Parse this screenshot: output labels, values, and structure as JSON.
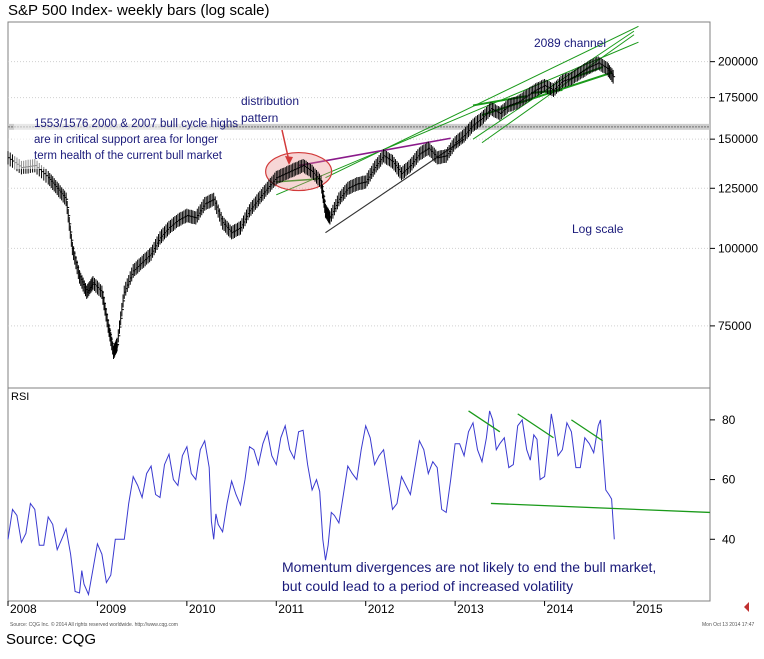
{
  "header": {
    "title": "S&P 500 Index- weekly bars (log scale)"
  },
  "footer": {
    "source": "Source: CQG",
    "fineprint_left": "Source: CQG Inc. © 2014 All rights reserved worldwide. http://www.cqg.com",
    "fineprint_right": "Mon Oct 13 2014 17:47"
  },
  "colors": {
    "price": "#000000",
    "rsi": "#3a3ad0",
    "trend_green": "#1a9a1a",
    "trend_purple": "#8a1a8a",
    "annotation": "#1a1a7a",
    "ellipse": "#d23a3a"
  },
  "chart_data": [
    {
      "type": "line",
      "name": "price-panel",
      "yscale": "log",
      "ylim": [
        60000,
        230000
      ],
      "xlim": [
        2008.0,
        2015.85
      ],
      "xlabel": "",
      "ylabel": "",
      "y_ticks": [
        200000,
        175000,
        150000,
        125000,
        100000,
        75000
      ],
      "y_tick_labels": [
        "200000",
        "175000",
        "150000",
        "125000",
        100000,
        "75000"
      ],
      "support_band": 157000,
      "series": [
        {
          "x": [
            2008.0,
            2008.15,
            2008.3,
            2008.45,
            2008.55,
            2008.65,
            2008.72,
            2008.8,
            2008.88,
            2008.95,
            2009.05,
            2009.12,
            2009.18,
            2009.22,
            2009.3,
            2009.4,
            2009.5,
            2009.6,
            2009.7,
            2009.8,
            2009.9,
            2010.0,
            2010.1,
            2010.2,
            2010.3,
            2010.4,
            2010.5,
            2010.6,
            2010.7,
            2010.8,
            2010.9,
            2011.0,
            2011.1,
            2011.2,
            2011.3,
            2011.4,
            2011.5,
            2011.55,
            2011.6,
            2011.7,
            2011.8,
            2011.9,
            2012.0,
            2012.1,
            2012.2,
            2012.3,
            2012.4,
            2012.5,
            2012.6,
            2012.7,
            2012.8,
            2012.9,
            2013.0,
            2013.1,
            2013.2,
            2013.3,
            2013.4,
            2013.5,
            2013.6,
            2013.7,
            2013.8,
            2013.9,
            2014.0,
            2014.1,
            2014.2,
            2014.3,
            2014.4,
            2014.5,
            2014.6,
            2014.7,
            2014.78
          ],
          "values": [
            140000,
            135000,
            136000,
            130000,
            125000,
            120000,
            100000,
            90000,
            85000,
            88000,
            85000,
            75000,
            68000,
            70000,
            85000,
            92000,
            95000,
            98000,
            104000,
            108000,
            111000,
            113000,
            112000,
            118000,
            120000,
            110000,
            106000,
            108000,
            115000,
            120000,
            125000,
            130000,
            132000,
            134000,
            136000,
            133000,
            128000,
            115000,
            112000,
            120000,
            125000,
            127000,
            128000,
            135000,
            141000,
            138000,
            132000,
            136000,
            142000,
            145000,
            140000,
            141000,
            148000,
            152000,
            158000,
            162000,
            168000,
            165000,
            170000,
            172000,
            176000,
            180000,
            183000,
            180000,
            186000,
            188000,
            192000,
            196000,
            199000,
            195000,
            188000
          ]
        }
      ],
      "annotations": [
        "1553/1576 2000 & 2007 bull cycle highs are in critical support area for longer term health of the current bull market",
        "distribution pattern",
        "2089 channel",
        "Log scale"
      ]
    },
    {
      "type": "line",
      "name": "rsi-panel",
      "ylabel": "RSI",
      "ylim": [
        20,
        90
      ],
      "y_ticks": [
        80,
        60,
        40
      ],
      "x_ticks": [
        2008,
        2009,
        2010,
        2011,
        2012,
        2013,
        2014,
        2015
      ],
      "x_tick_labels": [
        "2008",
        "2009",
        "2010",
        "2011",
        "2012",
        "2013",
        "2014",
        "2015"
      ],
      "series": [
        {
          "name": "RSI",
          "x": [
            2008.0,
            2008.1,
            2008.2,
            2008.3,
            2008.4,
            2008.5,
            2008.6,
            2008.7,
            2008.8,
            2008.85,
            2008.95,
            2009.05,
            2009.15,
            2009.25,
            2009.35,
            2009.45,
            2009.55,
            2009.65,
            2009.75,
            2009.85,
            2009.95,
            2010.05,
            2010.15,
            2010.25,
            2010.3,
            2010.35,
            2010.45,
            2010.55,
            2010.65,
            2010.75,
            2010.85,
            2010.95,
            2011.05,
            2011.15,
            2011.25,
            2011.35,
            2011.45,
            2011.52,
            2011.58,
            2011.65,
            2011.75,
            2011.85,
            2011.95,
            2012.05,
            2012.15,
            2012.25,
            2012.35,
            2012.45,
            2012.55,
            2012.65,
            2012.75,
            2012.85,
            2012.95,
            2013.05,
            2013.15,
            2013.25,
            2013.35,
            2013.42,
            2013.5,
            2013.6,
            2013.7,
            2013.8,
            2013.88,
            2013.95,
            2014.05,
            2014.1,
            2014.2,
            2014.3,
            2014.4,
            2014.5,
            2014.6,
            2014.65,
            2014.72,
            2014.78
          ],
          "values": [
            40,
            48,
            42,
            50,
            38,
            45,
            40,
            35,
            22,
            25,
            30,
            35,
            28,
            40,
            52,
            58,
            62,
            55,
            65,
            60,
            68,
            62,
            70,
            64,
            40,
            45,
            52,
            55,
            60,
            70,
            72,
            68,
            74,
            70,
            76,
            65,
            60,
            40,
            38,
            48,
            55,
            62,
            70,
            74,
            68,
            60,
            52,
            58,
            64,
            70,
            66,
            50,
            60,
            72,
            76,
            70,
            74,
            80,
            72,
            64,
            78,
            70,
            75,
            60,
            74,
            78,
            70,
            76,
            64,
            72,
            78,
            70,
            55,
            40
          ]
        }
      ],
      "annotations": [
        "Momentum divergences are not likely to end the bull market, but could lead to a period of increased volatility"
      ]
    }
  ]
}
